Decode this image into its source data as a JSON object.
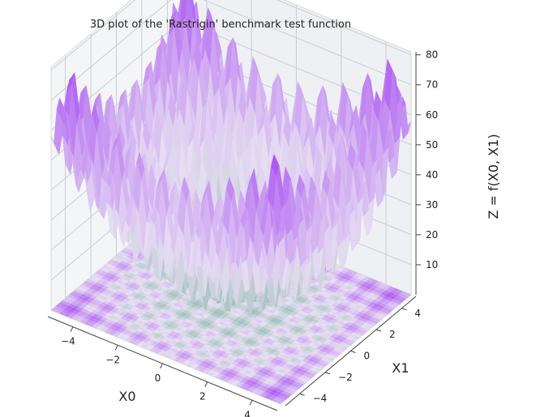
{
  "chart_data": {
    "type": "surface3d",
    "title": "3D plot of the 'Rastrigin' benchmark test function",
    "function": "Rastrigin",
    "xlabel": "X0",
    "ylabel": "X1",
    "zlabel": "Z = f(X0, X1)",
    "xlim": [
      -5.12,
      5.12
    ],
    "ylim": [
      -5.12,
      5.12
    ],
    "zlim": [
      0,
      81
    ],
    "x_ticks": [
      "−4",
      "−2",
      "0",
      "2",
      "4"
    ],
    "y_ticks": [
      "−4",
      "−2",
      "0",
      "2",
      "4"
    ],
    "z_ticks": [
      "10",
      "20",
      "30",
      "40",
      "50",
      "60",
      "70",
      "80"
    ],
    "colors": {
      "low": "#8fb8b0",
      "mid": "#e7def2",
      "high": "#a64af2"
    },
    "contour_projection": true
  }
}
